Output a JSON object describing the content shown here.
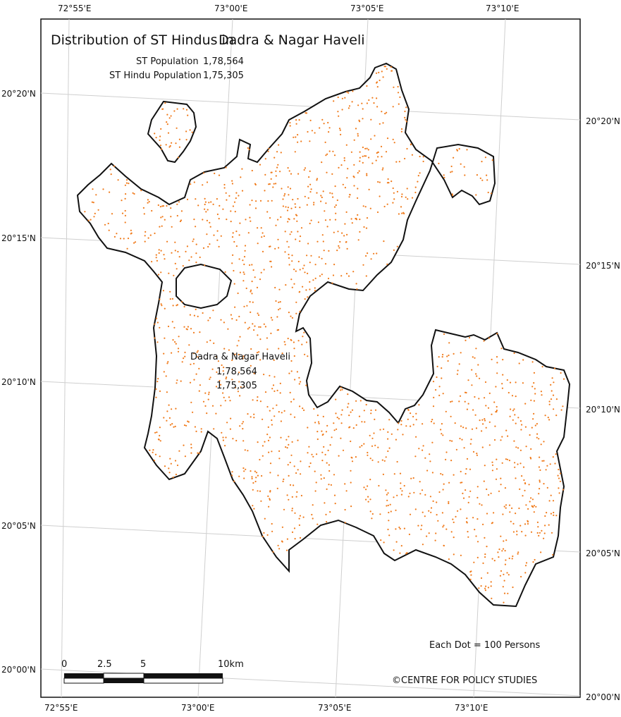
{
  "title": "Distribution of ST Hindus in",
  "title_region": "Dadra & Nagar Haveli",
  "stats": {
    "st_population_label": "ST Population",
    "st_population_value": "1,78,564",
    "st_hindu_label": "ST Hindu Population",
    "st_hindu_value": "1,75,305"
  },
  "region_label": {
    "name": "Dadra & Nagar Haveli",
    "value1": "1,78,564",
    "value2": "1,75,305"
  },
  "lon_ticks_top": [
    "72°55'E",
    "73°00'E",
    "73°05'E",
    "73°10'E"
  ],
  "lon_ticks_bottom": [
    "72°55'E",
    "73°00'E",
    "73°05'E",
    "73°10'E"
  ],
  "lat_ticks_left": [
    "20°20'N",
    "20°15'N",
    "20°10'N",
    "20°05'N",
    "20°00'N"
  ],
  "lat_ticks_right": [
    "20°20'N",
    "20°15'N",
    "20°10'N",
    "20°05'N",
    "20°00'N"
  ],
  "legend": {
    "dot_text": "Each Dot = 100 Persons",
    "dot_color": "#f07a1a"
  },
  "scalebar": {
    "labels": [
      "0",
      "2.5",
      "5",
      "10km"
    ]
  },
  "credit": "©CENTRE FOR POLICY STUDIES"
}
